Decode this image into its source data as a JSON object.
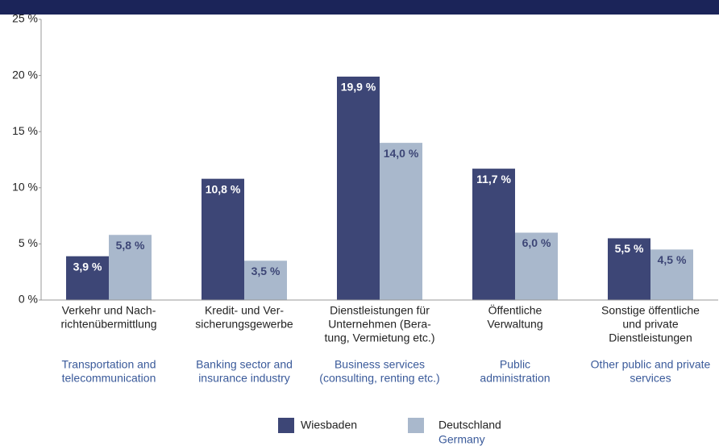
{
  "chart_data": {
    "type": "bar",
    "categories": [
      [
        "Verkehr und Nach-",
        "richtenübermittlung"
      ],
      [
        "Kredit- und Ver-",
        "sicherungsgewerbe"
      ],
      [
        "Dienstleistungen für",
        "Unternehmen (Bera-",
        "tung, Vermietung etc.)"
      ],
      [
        "Öffentliche",
        "Verwaltung"
      ],
      [
        "Sonstige öffentliche",
        "und private",
        "Dienstleistungen"
      ]
    ],
    "categories_en": [
      [
        "Transportation and",
        "telecommunication"
      ],
      [
        "Banking sector and",
        "insurance industry"
      ],
      [
        "Business services",
        "(consulting, renting etc.)"
      ],
      [
        "Public",
        "administration"
      ],
      [
        "Other public and private",
        "services"
      ]
    ],
    "series": [
      {
        "name": "Wiesbaden",
        "color": "#3d4676",
        "label_color": "#ffffff",
        "values": [
          3.9,
          10.8,
          19.9,
          11.7,
          5.5
        ],
        "value_labels": [
          "3,9 %",
          "10,8 %",
          "19,9 %",
          "11,7 %",
          "5,5 %"
        ]
      },
      {
        "name": "Deutschland",
        "name_en": "Germany",
        "color": "#a9b8cc",
        "label_color": "#3d4676",
        "values": [
          5.8,
          3.5,
          14.0,
          6.0,
          4.5
        ],
        "value_labels": [
          "5,8 %",
          "3,5 %",
          "14,0 %",
          "6,0 %",
          "4,5 %"
        ]
      }
    ],
    "ylim": [
      0,
      25
    ],
    "yticks": [
      {
        "value": 0,
        "label": "0 %"
      },
      {
        "value": 5,
        "label": "5 %"
      },
      {
        "value": 10,
        "label": "10 %"
      },
      {
        "value": 15,
        "label": "15 %"
      },
      {
        "value": 20,
        "label": "20 %"
      },
      {
        "value": 25,
        "label": "25 %"
      }
    ],
    "grid": false
  }
}
